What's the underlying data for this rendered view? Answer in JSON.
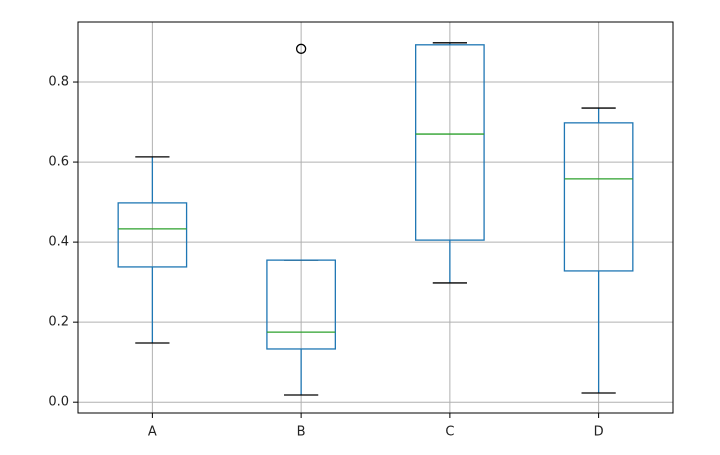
{
  "chart_data": {
    "type": "box",
    "categories": [
      "A",
      "B",
      "C",
      "D"
    ],
    "boxes": [
      {
        "min": 0.148,
        "q1": 0.338,
        "median": 0.433,
        "q3": 0.498,
        "max": 0.613,
        "outliers": []
      },
      {
        "min": 0.018,
        "q1": 0.133,
        "median": 0.175,
        "q3": 0.355,
        "max": 0.355,
        "outliers": [
          0.883
        ]
      },
      {
        "min": 0.298,
        "q1": 0.405,
        "median": 0.67,
        "q3": 0.893,
        "max": 0.898,
        "outliers": []
      },
      {
        "min": 0.023,
        "q1": 0.328,
        "median": 0.558,
        "q3": 0.698,
        "max": 0.735,
        "outliers": []
      }
    ],
    "box_color": "#1f77b4",
    "median_color": "#2ca02c",
    "ylim": [
      -0.027,
      0.95
    ],
    "yticks": [
      {
        "value": 0,
        "label": "0.0"
      },
      0.2,
      0.4,
      0.6,
      0.8
    ],
    "grid": true
  }
}
